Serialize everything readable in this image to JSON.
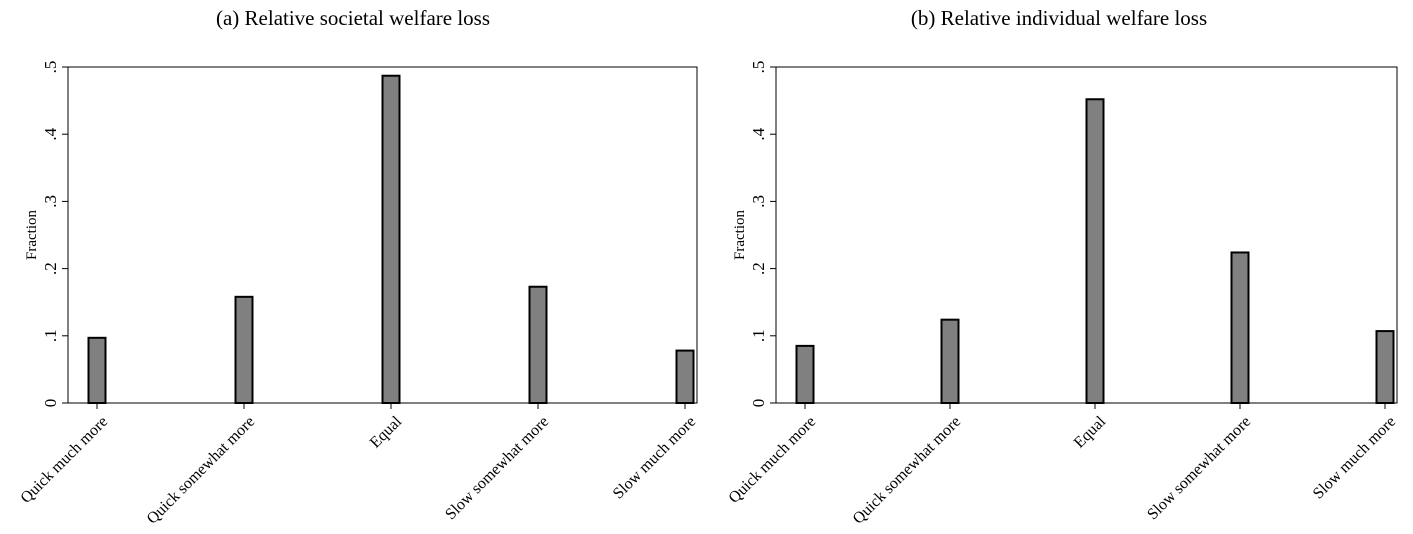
{
  "chart_data": [
    {
      "type": "bar",
      "title": "(a) Relative societal welfare loss",
      "ylabel": "Fraction",
      "xlabel": "",
      "categories": [
        "Quick much more",
        "Quick somewhat more",
        "Equal",
        "Slow somewhat more",
        "Slow much more"
      ],
      "values": [
        0.097,
        0.158,
        0.487,
        0.173,
        0.078
      ],
      "ylim": [
        0,
        0.5
      ],
      "yticks": [
        0,
        0.1,
        0.2,
        0.3,
        0.4,
        0.5
      ],
      "ytick_labels": [
        "0",
        ".1",
        ".2",
        ".3",
        ".4",
        ".5"
      ],
      "grid": false,
      "bar_color": "#808080"
    },
    {
      "type": "bar",
      "title": "(b) Relative individual welfare loss",
      "ylabel": "Fraction",
      "xlabel": "",
      "categories": [
        "Quick much more",
        "Quick somewhat more",
        "Equal",
        "Slow somewhat more",
        "Slow much more"
      ],
      "values": [
        0.085,
        0.124,
        0.452,
        0.224,
        0.107
      ],
      "ylim": [
        0,
        0.5
      ],
      "yticks": [
        0,
        0.1,
        0.2,
        0.3,
        0.4,
        0.5
      ],
      "ytick_labels": [
        "0",
        ".1",
        ".2",
        ".3",
        ".4",
        ".5"
      ],
      "grid": false,
      "bar_color": "#808080"
    }
  ]
}
